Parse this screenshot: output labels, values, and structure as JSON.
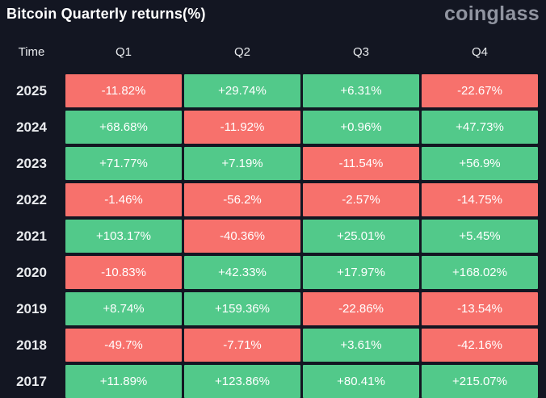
{
  "header": {
    "title": "Bitcoin Quarterly returns(%)",
    "logo": "coinglass"
  },
  "table": {
    "columns": [
      "Time",
      "Q1",
      "Q2",
      "Q3",
      "Q4"
    ],
    "rows": [
      {
        "year": "2025",
        "values": [
          "-11.82%",
          "+29.74%",
          "+6.31%",
          "-22.67%"
        ]
      },
      {
        "year": "2024",
        "values": [
          "+68.68%",
          "-11.92%",
          "+0.96%",
          "+47.73%"
        ]
      },
      {
        "year": "2023",
        "values": [
          "+71.77%",
          "+7.19%",
          "-11.54%",
          "+56.9%"
        ]
      },
      {
        "year": "2022",
        "values": [
          "-1.46%",
          "-56.2%",
          "-2.57%",
          "-14.75%"
        ]
      },
      {
        "year": "2021",
        "values": [
          "+103.17%",
          "-40.36%",
          "+25.01%",
          "+5.45%"
        ]
      },
      {
        "year": "2020",
        "values": [
          "-10.83%",
          "+42.33%",
          "+17.97%",
          "+168.02%"
        ]
      },
      {
        "year": "2019",
        "values": [
          "+8.74%",
          "+159.36%",
          "-22.86%",
          "-13.54%"
        ]
      },
      {
        "year": "2018",
        "values": [
          "-49.7%",
          "-7.71%",
          "+3.61%",
          "-42.16%"
        ]
      },
      {
        "year": "2017",
        "values": [
          "+11.89%",
          "+123.86%",
          "+80.41%",
          "+215.07%"
        ]
      }
    ]
  },
  "colors": {
    "positive": "#52C98A",
    "negative": "#F7716C",
    "background": "#131622",
    "title_text": "#FFFFFF",
    "logo_text": "#9094A0",
    "cell_text": "#FFFFFF",
    "label_text": "#E9EBEE"
  },
  "chart_data": {
    "type": "heatmap",
    "title": "Bitcoin Quarterly returns(%)",
    "columns": [
      "Q1",
      "Q2",
      "Q3",
      "Q4"
    ],
    "rows": [
      "2025",
      "2024",
      "2023",
      "2022",
      "2021",
      "2020",
      "2019",
      "2018",
      "2017"
    ],
    "values": [
      [
        -11.82,
        29.74,
        6.31,
        -22.67
      ],
      [
        68.68,
        -11.92,
        0.96,
        47.73
      ],
      [
        71.77,
        7.19,
        -11.54,
        56.9
      ],
      [
        -1.46,
        -56.2,
        -2.57,
        -14.75
      ],
      [
        103.17,
        -40.36,
        25.01,
        5.45
      ],
      [
        -10.83,
        42.33,
        17.97,
        168.02
      ],
      [
        8.74,
        159.36,
        -22.86,
        -13.54
      ],
      [
        -49.7,
        -7.71,
        3.61,
        -42.16
      ],
      [
        11.89,
        123.86,
        80.41,
        215.07
      ]
    ],
    "unit": "%",
    "legend": "green = positive quarterly return, red = negative quarterly return",
    "source_watermark": "coinglass"
  }
}
